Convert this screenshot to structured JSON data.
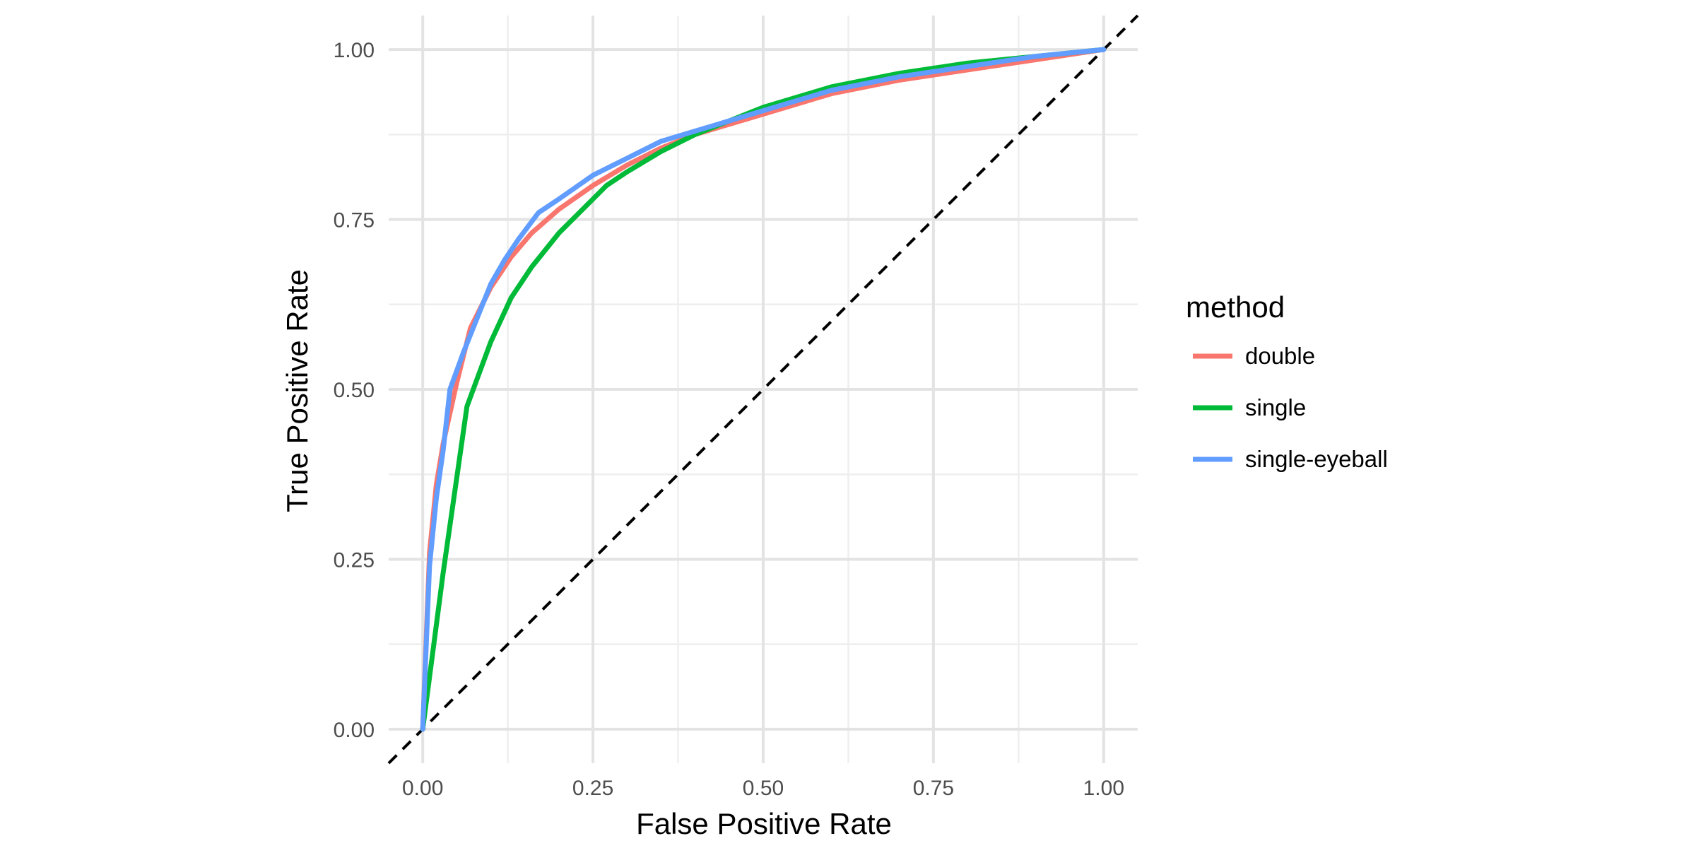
{
  "chart_data": {
    "type": "line",
    "xlabel": "False Positive Rate",
    "ylabel": "True Positive Rate",
    "xlim": [
      -0.05,
      1.05
    ],
    "ylim": [
      -0.05,
      1.05
    ],
    "x_ticks": [
      0,
      0.25,
      0.5,
      0.75,
      1
    ],
    "y_ticks": [
      0,
      0.25,
      0.5,
      0.75,
      1
    ],
    "x_tick_labels": [
      "0.00",
      "0.25",
      "0.50",
      "0.75",
      "1.00"
    ],
    "y_tick_labels": [
      "0.00",
      "0.25",
      "0.50",
      "0.75",
      "1.00"
    ],
    "grid": true,
    "legend": {
      "title": "method",
      "placement": "right"
    },
    "reference_line": {
      "style": "dashed",
      "color": "#000000",
      "x": [
        -0.05,
        1.05
      ],
      "y": [
        -0.05,
        1.05
      ]
    },
    "series": [
      {
        "name": "double",
        "color": "#F8766D",
        "x": [
          0,
          0.01,
          0.02,
          0.03,
          0.05,
          0.07,
          0.1,
          0.13,
          0.16,
          0.2,
          0.25,
          0.3,
          0.35,
          0.4,
          0.45,
          0.5,
          0.6,
          0.7,
          0.8,
          0.9,
          1.0
        ],
        "y": [
          0,
          0.26,
          0.36,
          0.42,
          0.51,
          0.59,
          0.65,
          0.695,
          0.73,
          0.765,
          0.8,
          0.83,
          0.855,
          0.875,
          0.89,
          0.905,
          0.935,
          0.955,
          0.97,
          0.985,
          1.0
        ]
      },
      {
        "name": "single",
        "color": "#00BA38",
        "x": [
          0,
          0.03,
          0.065,
          0.1,
          0.13,
          0.16,
          0.2,
          0.23,
          0.27,
          0.3,
          0.35,
          0.4,
          0.5,
          0.6,
          0.7,
          0.8,
          0.9,
          1.0
        ],
        "y": [
          0,
          0.23,
          0.475,
          0.57,
          0.635,
          0.68,
          0.73,
          0.76,
          0.8,
          0.82,
          0.85,
          0.875,
          0.915,
          0.945,
          0.965,
          0.98,
          0.99,
          1.0
        ]
      },
      {
        "name": "single-eyeball",
        "color": "#619CFF",
        "x": [
          0,
          0.01,
          0.02,
          0.03,
          0.04,
          0.06,
          0.08,
          0.1,
          0.12,
          0.14,
          0.17,
          0.2,
          0.25,
          0.3,
          0.35,
          0.4,
          0.5,
          0.6,
          0.7,
          0.8,
          0.9,
          1.0
        ],
        "y": [
          0,
          0.24,
          0.34,
          0.41,
          0.5,
          0.555,
          0.605,
          0.655,
          0.69,
          0.72,
          0.76,
          0.78,
          0.815,
          0.84,
          0.865,
          0.88,
          0.91,
          0.94,
          0.96,
          0.975,
          0.99,
          1.0
        ]
      }
    ]
  }
}
